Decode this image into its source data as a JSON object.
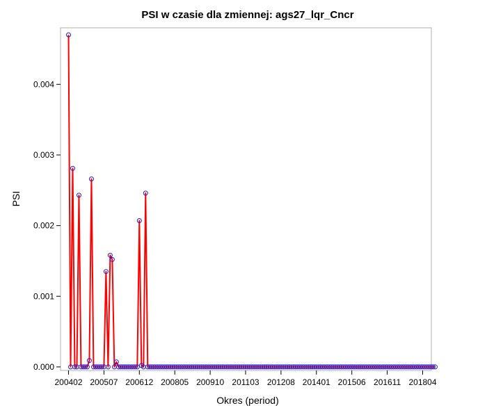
{
  "chart_data": {
    "type": "line",
    "title": "PSI w czasie dla zmiennej: ags27_lqr_Cncr",
    "xlabel": "Okres (period)",
    "ylabel": "PSI",
    "ylim": [
      -5e-05,
      0.0048
    ],
    "yticks": [
      "0.000",
      "0.001",
      "0.002",
      "0.003",
      "0.004"
    ],
    "ytick_values": [
      0,
      0.001,
      0.002,
      0.003,
      0.004
    ],
    "xticks": [
      "200402",
      "200507",
      "200612",
      "200805",
      "200910",
      "201103",
      "201208",
      "201401",
      "201506",
      "201611",
      "201804"
    ],
    "x_start": "200402",
    "x_end": "201805",
    "line_color": "#ff0000",
    "marker_color": "#1a1ad6",
    "grid": false,
    "legend": "none",
    "series": [
      {
        "values": [
          0.0047,
          0.0,
          0.00281,
          0.0,
          0.0,
          0.00243,
          0.0,
          0.0,
          0.0,
          0.0,
          9e-05,
          0.00266,
          0.0,
          0.0,
          0.0,
          0.0,
          0.0,
          0.0,
          0.00135,
          0.0,
          0.00158,
          0.00152,
          0.0,
          7e-05,
          0.0,
          0.0,
          0.0,
          0.0,
          0.0,
          0.0,
          0.0,
          0.0,
          0.0,
          0.0,
          0.00207,
          2e-05,
          0.0,
          0.00246,
          0.0,
          0.0,
          0.0,
          0.0,
          0.0,
          0.0,
          0.0,
          0.0,
          0.0,
          0.0,
          0.0,
          0.0,
          0.0,
          0.0,
          0.0,
          0.0,
          0.0,
          0.0,
          0.0,
          0.0,
          0.0,
          0.0,
          0.0,
          0.0,
          0.0,
          0.0,
          0.0,
          0.0,
          0.0,
          0.0,
          0.0,
          0.0,
          0.0,
          0.0,
          0.0,
          0.0,
          0.0,
          0.0,
          0.0,
          0.0,
          0.0,
          0.0,
          0.0,
          0.0,
          0.0,
          0.0,
          0.0,
          0.0,
          0.0,
          0.0,
          0.0,
          0.0,
          0.0,
          0.0,
          0.0,
          0.0,
          0.0,
          0.0,
          0.0,
          0.0,
          0.0,
          0.0,
          0.0,
          0.0,
          0.0,
          0.0,
          0.0,
          0.0,
          0.0,
          0.0,
          0.0,
          0.0,
          0.0,
          0.0,
          0.0,
          0.0,
          0.0,
          0.0,
          0.0,
          0.0,
          0.0,
          0.0,
          0.0,
          0.0,
          0.0,
          0.0,
          0.0,
          0.0,
          0.0,
          0.0,
          0.0,
          0.0,
          0.0,
          0.0,
          0.0,
          0.0,
          0.0,
          0.0,
          0.0,
          0.0,
          0.0,
          0.0,
          0.0,
          0.0,
          0.0,
          0.0,
          0.0,
          0.0,
          0.0,
          0.0,
          0.0,
          0.0,
          0.0,
          0.0,
          0.0,
          0.0,
          0.0,
          0.0,
          0.0,
          0.0,
          0.0,
          0.0,
          0.0,
          0.0,
          0.0,
          0.0,
          0.0,
          0.0,
          0.0,
          0.0,
          0.0,
          0.0,
          0.0,
          0.0,
          0.0,
          0.0,
          0.0,
          0.0,
          0.0
        ]
      }
    ]
  }
}
